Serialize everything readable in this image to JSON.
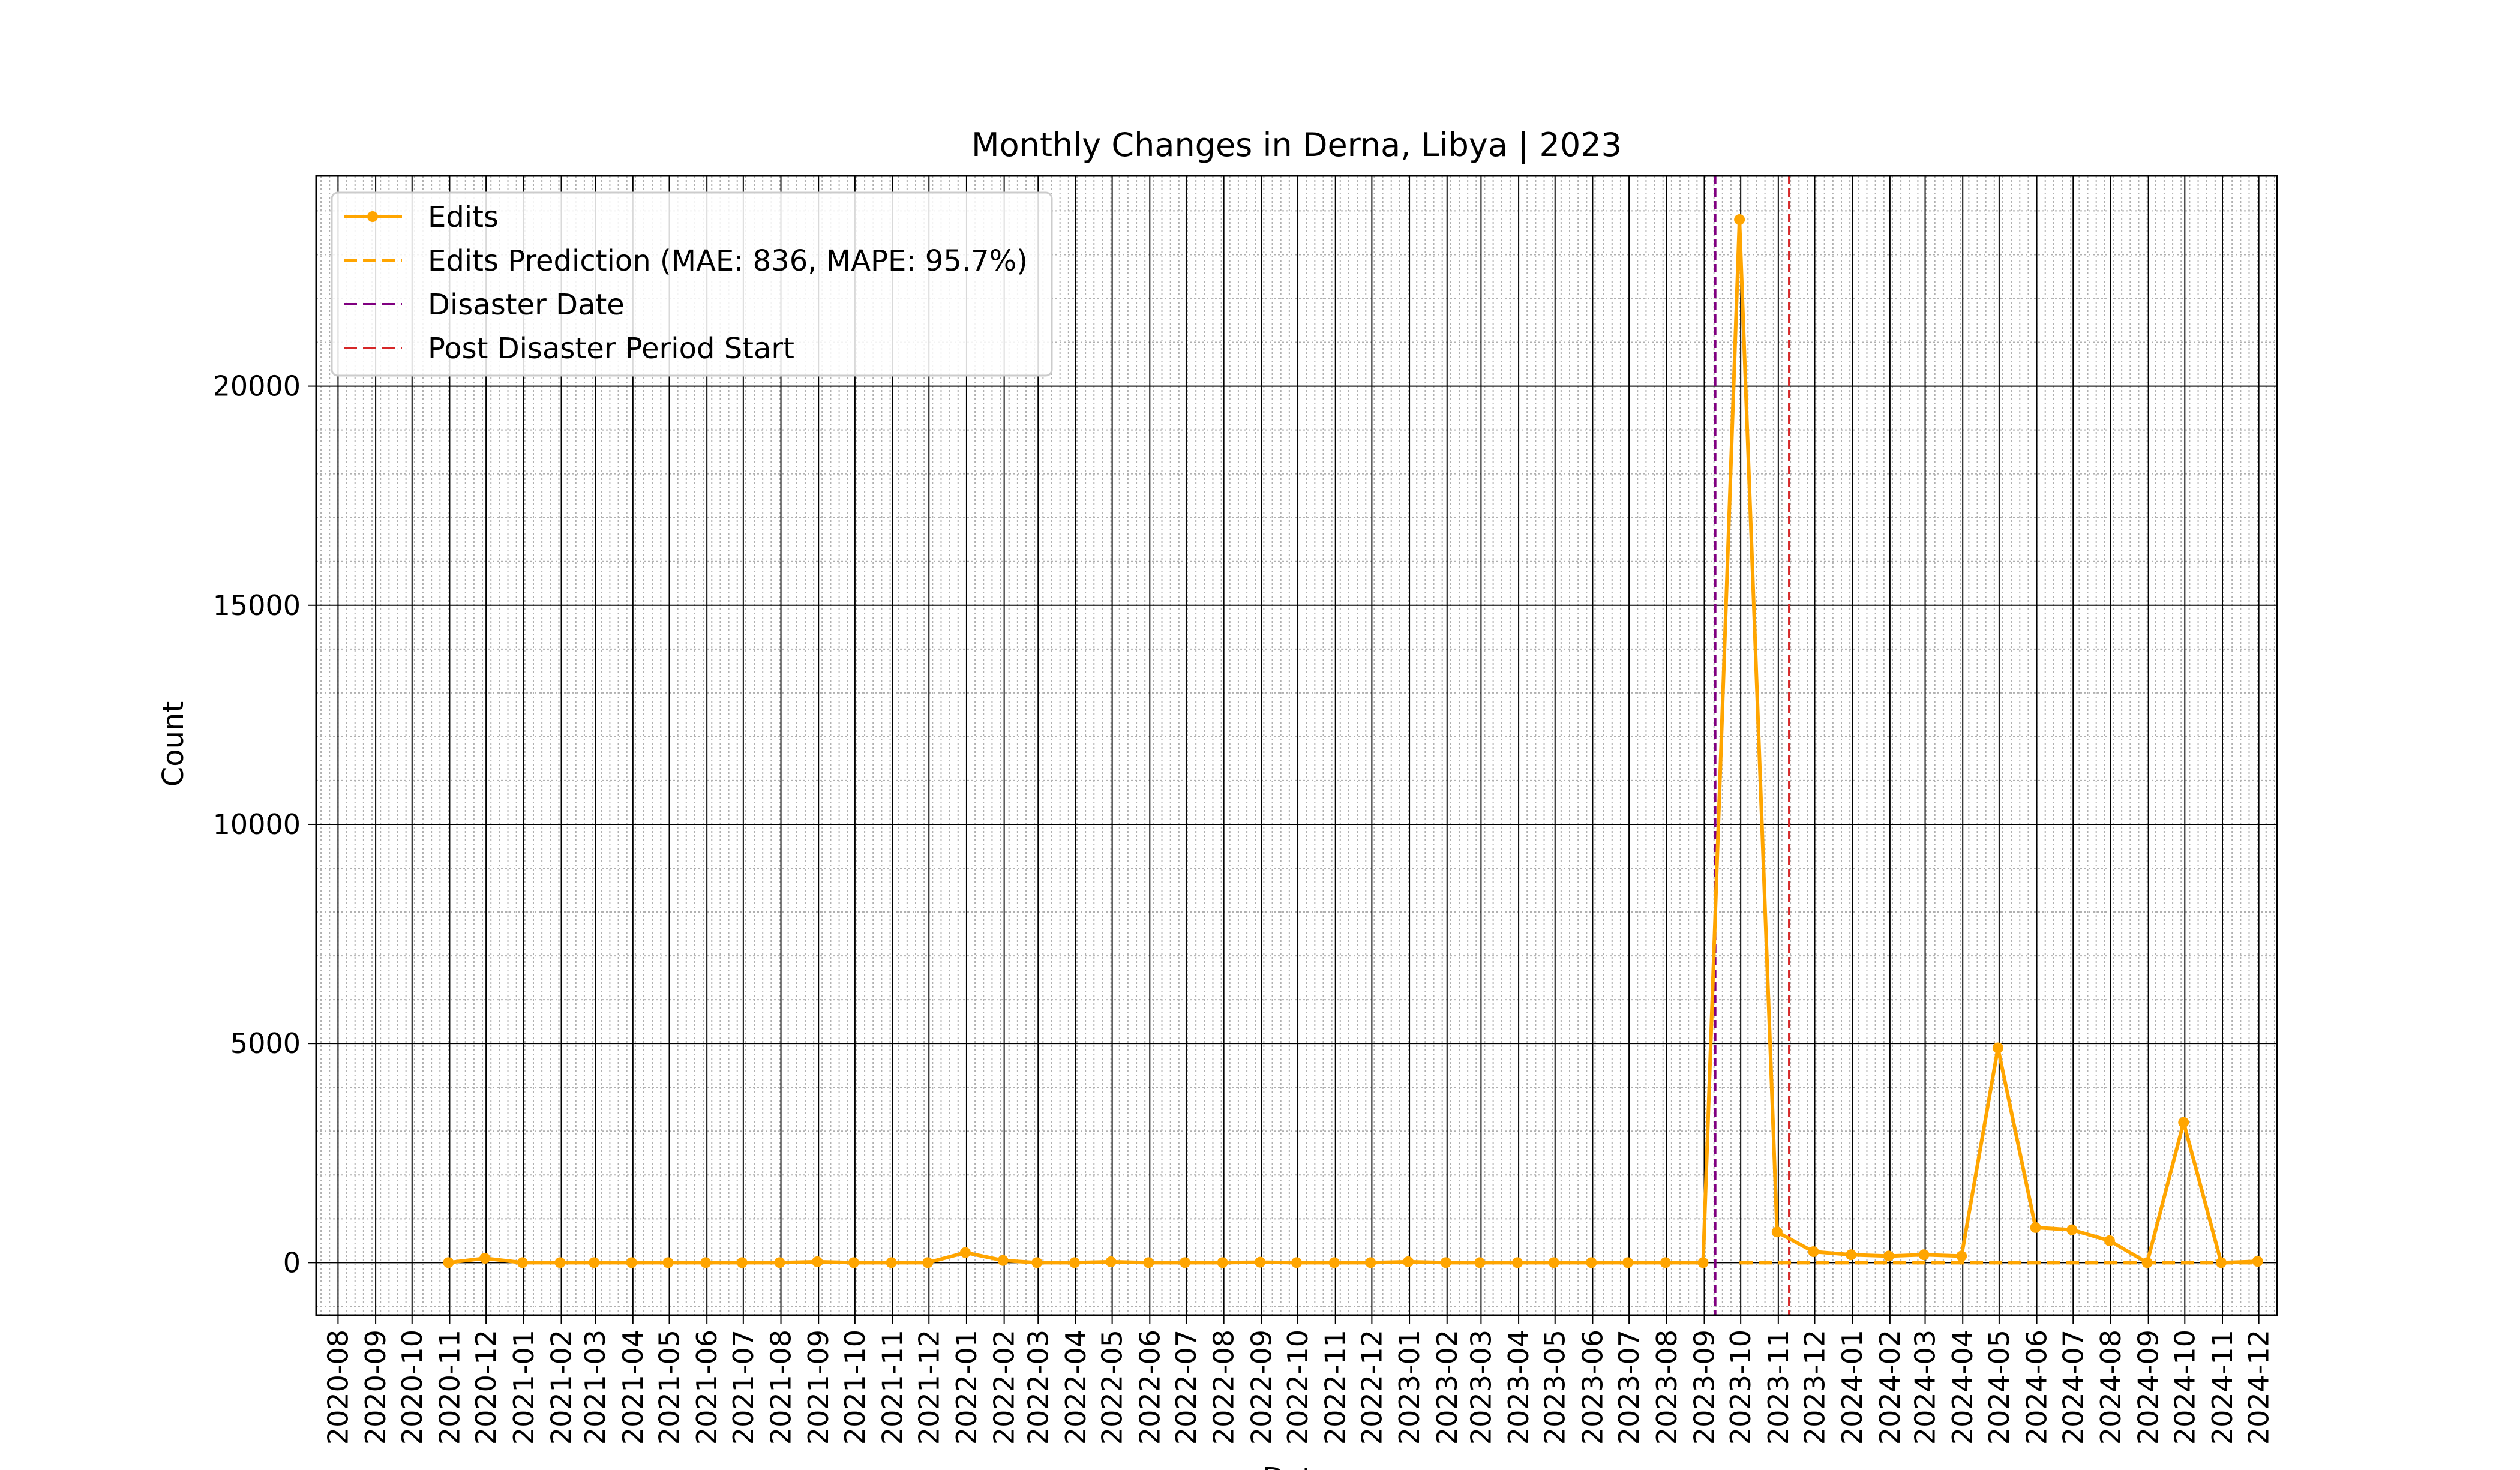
{
  "chart_data": {
    "type": "line",
    "title": "Monthly Changes in Derna, Libya | 2023",
    "xlabel": "Date",
    "ylabel": "Count",
    "xlim": [
      "2020-08",
      "2024-12"
    ],
    "ylim": [
      -1200,
      24800
    ],
    "x_tick_labels": [
      "2020-08",
      "2020-09",
      "2020-10",
      "2020-11",
      "2020-12",
      "2021-01",
      "2021-02",
      "2021-03",
      "2021-04",
      "2021-05",
      "2021-06",
      "2021-07",
      "2021-08",
      "2021-09",
      "2021-10",
      "2021-11",
      "2021-12",
      "2022-01",
      "2022-02",
      "2022-03",
      "2022-04",
      "2022-05",
      "2022-06",
      "2022-07",
      "2022-08",
      "2022-09",
      "2022-10",
      "2022-11",
      "2022-12",
      "2023-01",
      "2023-02",
      "2023-03",
      "2023-04",
      "2023-05",
      "2023-06",
      "2023-07",
      "2023-08",
      "2023-09",
      "2023-10",
      "2023-11",
      "2023-12",
      "2024-01",
      "2024-02",
      "2024-03",
      "2024-04",
      "2024-05",
      "2024-06",
      "2024-07",
      "2024-08",
      "2024-09",
      "2024-10",
      "2024-11",
      "2024-12"
    ],
    "y_ticks": [
      0,
      5000,
      10000,
      15000,
      20000
    ],
    "grid": true,
    "legend_position": "upper-left",
    "series": [
      {
        "name": "Edits",
        "style": "solid-with-markers",
        "color": "#FFA500",
        "points": [
          [
            "2020-10-31",
            0
          ],
          [
            "2020-11-30",
            100
          ],
          [
            "2020-12-31",
            0
          ],
          [
            "2021-01-31",
            0
          ],
          [
            "2021-02-28",
            0
          ],
          [
            "2021-03-31",
            0
          ],
          [
            "2021-04-30",
            0
          ],
          [
            "2021-05-31",
            0
          ],
          [
            "2021-06-30",
            0
          ],
          [
            "2021-07-31",
            0
          ],
          [
            "2021-08-31",
            20
          ],
          [
            "2021-09-30",
            0
          ],
          [
            "2021-10-31",
            0
          ],
          [
            "2021-11-30",
            0
          ],
          [
            "2021-12-31",
            230
          ],
          [
            "2022-01-31",
            50
          ],
          [
            "2022-02-28",
            0
          ],
          [
            "2022-03-31",
            0
          ],
          [
            "2022-04-30",
            20
          ],
          [
            "2022-05-31",
            0
          ],
          [
            "2022-06-30",
            0
          ],
          [
            "2022-07-31",
            0
          ],
          [
            "2022-08-31",
            10
          ],
          [
            "2022-09-30",
            0
          ],
          [
            "2022-10-31",
            0
          ],
          [
            "2022-11-30",
            0
          ],
          [
            "2022-12-31",
            20
          ],
          [
            "2023-01-31",
            0
          ],
          [
            "2023-02-28",
            0
          ],
          [
            "2023-03-31",
            0
          ],
          [
            "2023-04-30",
            0
          ],
          [
            "2023-05-31",
            0
          ],
          [
            "2023-06-30",
            0
          ],
          [
            "2023-07-31",
            0
          ],
          [
            "2023-08-31",
            0
          ],
          [
            "2023-09-30",
            23800
          ],
          [
            "2023-10-31",
            700
          ],
          [
            "2023-11-30",
            250
          ],
          [
            "2023-12-31",
            180
          ],
          [
            "2024-01-31",
            150
          ],
          [
            "2024-02-29",
            180
          ],
          [
            "2024-03-31",
            150
          ],
          [
            "2024-04-30",
            4900
          ],
          [
            "2024-05-31",
            800
          ],
          [
            "2024-06-30",
            750
          ],
          [
            "2024-07-31",
            500
          ],
          [
            "2024-08-31",
            0
          ],
          [
            "2024-09-30",
            3200
          ],
          [
            "2024-10-31",
            0
          ],
          [
            "2024-11-30",
            30
          ]
        ]
      },
      {
        "name": "Edits Prediction (MAE: 836, MAPE: 95.7%)",
        "style": "dashed",
        "color": "#FFA500",
        "points": [
          [
            "2023-09-30",
            0
          ],
          [
            "2023-10-31",
            0
          ],
          [
            "2023-11-30",
            0
          ],
          [
            "2023-12-31",
            0
          ],
          [
            "2024-01-31",
            0
          ],
          [
            "2024-02-29",
            0
          ],
          [
            "2024-03-31",
            0
          ],
          [
            "2024-04-30",
            0
          ],
          [
            "2024-05-31",
            0
          ],
          [
            "2024-06-30",
            0
          ],
          [
            "2024-07-31",
            0
          ],
          [
            "2024-08-31",
            0
          ],
          [
            "2024-09-30",
            0
          ],
          [
            "2024-10-31",
            0
          ],
          [
            "2024-11-30",
            0
          ]
        ]
      }
    ],
    "vlines": [
      {
        "name": "Disaster Date",
        "x": "2023-09-10",
        "color": "#800080",
        "style": "dashed"
      },
      {
        "name": "Post Disaster Period Start",
        "x": "2023-11-10",
        "color": "#D62728",
        "style": "dashed"
      }
    ]
  }
}
